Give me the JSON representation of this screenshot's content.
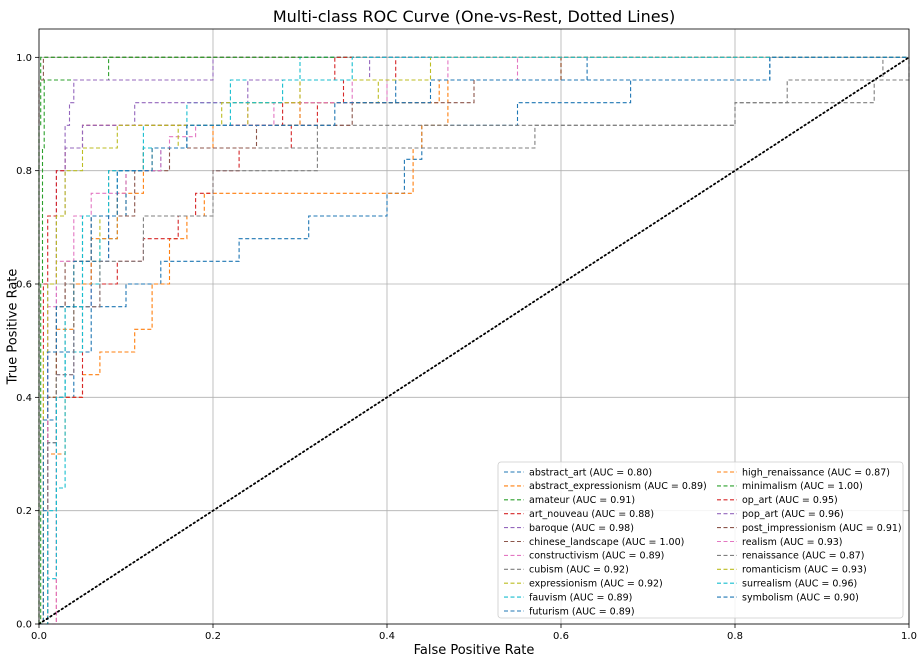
{
  "chart_data": {
    "type": "line",
    "title": "Multi-class ROC Curve (One-vs-Rest, Dotted Lines)",
    "xlabel": "False Positive Rate",
    "ylabel": "True Positive Rate",
    "xlim": [
      0.0,
      1.0
    ],
    "ylim": [
      0.0,
      1.05
    ],
    "x_ticks": [
      "0.0",
      "0.2",
      "0.4",
      "0.6",
      "0.8",
      "1.0"
    ],
    "y_ticks": [
      "0.0",
      "0.2",
      "0.4",
      "0.6",
      "0.8",
      "1.0"
    ],
    "grid": true,
    "legend_placement": "lower-right",
    "legend_columns": 2,
    "diagonal": {
      "style": "dotted",
      "color": "#000000",
      "x": [
        0,
        1
      ],
      "y": [
        0,
        1
      ]
    },
    "series": [
      {
        "name": "abstract_art (AUC = 0.80)",
        "color": "#1f77b4",
        "x": [
          0,
          0.005,
          0.01,
          0.02,
          0.04,
          0.06,
          0.1,
          0.14,
          0.19,
          0.23,
          0.31,
          0.4,
          0.42,
          0.44,
          0.5,
          0.55,
          0.6,
          0.68,
          0.73,
          0.8,
          0.84,
          0.91,
          1.0
        ],
        "y": [
          0,
          0.2,
          0.32,
          0.4,
          0.48,
          0.56,
          0.6,
          0.64,
          0.64,
          0.68,
          0.72,
          0.76,
          0.82,
          0.88,
          0.88,
          0.92,
          0.92,
          0.96,
          0.96,
          0.96,
          1.0,
          1.0,
          1.0
        ]
      },
      {
        "name": "abstract_expressionism (AUC = 0.89)",
        "color": "#ff7f0e",
        "x": [
          0,
          0.01,
          0.03,
          0.05,
          0.07,
          0.11,
          0.13,
          0.15,
          0.17,
          0.19,
          0.42,
          0.43,
          0.44,
          0.47,
          0.52,
          0.59,
          0.6,
          1.0
        ],
        "y": [
          0,
          0.3,
          0.4,
          0.44,
          0.48,
          0.52,
          0.6,
          0.68,
          0.72,
          0.76,
          0.76,
          0.84,
          0.88,
          0.96,
          0.96,
          0.96,
          1.0,
          1.0
        ]
      },
      {
        "name": "amateur (AUC = 0.91)",
        "color": "#2ca02c",
        "x": [
          0,
          0.002,
          0.004,
          0.006,
          0.07,
          0.08,
          0.58,
          0.6,
          1.0
        ],
        "y": [
          0,
          0.6,
          0.84,
          0.96,
          0.96,
          1.0,
          1.0,
          1.0,
          1.0
        ]
      },
      {
        "name": "art_nouveau (AUC = 0.88)",
        "color": "#d62728",
        "x": [
          0,
          0.02,
          0.05,
          0.07,
          0.09,
          0.12,
          0.16,
          0.18,
          0.2,
          0.23,
          0.29,
          0.32,
          0.35,
          0.37,
          0.41,
          0.42,
          0.6,
          1.0
        ],
        "y": [
          0,
          0.4,
          0.56,
          0.6,
          0.64,
          0.68,
          0.72,
          0.76,
          0.8,
          0.84,
          0.88,
          0.92,
          0.96,
          0.96,
          1.0,
          1.0,
          1.0,
          1.0
        ]
      },
      {
        "name": "baroque (AUC = 0.98)",
        "color": "#9467bd",
        "x": [
          0,
          0.01,
          0.02,
          0.03,
          0.035,
          0.04,
          0.19,
          0.2,
          1.0
        ],
        "y": [
          0,
          0.6,
          0.8,
          0.88,
          0.92,
          0.96,
          0.96,
          1.0,
          1.0
        ]
      },
      {
        "name": "chinese_landscape (AUC = 1.00)",
        "color": "#8c564b",
        "x": [
          0,
          0.0,
          0.005,
          1.0
        ],
        "y": [
          0,
          0.96,
          1.0,
          1.0
        ]
      },
      {
        "name": "constructivism (AUC = 0.89)",
        "color": "#e377c2",
        "x": [
          0,
          0.02,
          0.04,
          0.06,
          0.08,
          0.1,
          0.12,
          0.15,
          0.18,
          0.24,
          0.3,
          0.4,
          0.45,
          0.55,
          1.0
        ],
        "y": [
          0,
          0.44,
          0.56,
          0.64,
          0.72,
          0.8,
          0.84,
          0.86,
          0.88,
          0.92,
          0.92,
          0.96,
          0.96,
          1.0,
          1.0
        ]
      },
      {
        "name": "cubism (AUC = 0.92)",
        "color": "#7f7f7f",
        "x": [
          0,
          0.01,
          0.03,
          0.05,
          0.08,
          0.12,
          0.16,
          0.22,
          0.32,
          0.36,
          0.44,
          0.8,
          0.8,
          0.94,
          0.96,
          1.0
        ],
        "y": [
          0,
          0.4,
          0.6,
          0.72,
          0.8,
          0.84,
          0.84,
          0.84,
          0.88,
          0.88,
          0.88,
          0.88,
          0.92,
          0.92,
          0.96,
          1.0
        ]
      },
      {
        "name": "expressionism (AUC = 0.92)",
        "color": "#bcbd22",
        "x": [
          0,
          0.01,
          0.02,
          0.04,
          0.07,
          0.1,
          0.13,
          0.16,
          0.2,
          0.24,
          0.28,
          0.34,
          0.39,
          0.44,
          0.59,
          0.6,
          1.0
        ],
        "y": [
          0,
          0.4,
          0.56,
          0.64,
          0.72,
          0.8,
          0.84,
          0.88,
          0.88,
          0.92,
          0.92,
          0.92,
          0.96,
          0.96,
          0.96,
          1.0,
          1.0
        ]
      },
      {
        "name": "fauvism (AUC = 0.89)",
        "color": "#17becf",
        "x": [
          0,
          0.01,
          0.02,
          0.03,
          0.05,
          0.07,
          0.09,
          0.12,
          0.17,
          0.22,
          0.3,
          0.44,
          0.58,
          0.66,
          1.0
        ],
        "y": [
          0,
          0.08,
          0.24,
          0.48,
          0.6,
          0.68,
          0.8,
          0.88,
          0.92,
          0.96,
          1.0,
          1.0,
          1.0,
          1.0,
          1.0
        ]
      },
      {
        "name": "futurism (AUC = 0.89)",
        "color": "#1f77b4",
        "x": [
          0,
          0.01,
          0.02,
          0.04,
          0.06,
          0.08,
          0.1,
          0.14,
          0.17,
          0.26,
          0.3,
          0.4,
          0.41,
          0.46,
          0.55,
          0.63,
          0.69,
          1.0
        ],
        "y": [
          0,
          0.36,
          0.48,
          0.56,
          0.64,
          0.72,
          0.8,
          0.84,
          0.88,
          0.88,
          0.92,
          0.92,
          0.96,
          0.96,
          0.96,
          1.0,
          1.0,
          1.0
        ]
      },
      {
        "name": "high_renaissance (AUC = 0.87)",
        "color": "#ff7f0e",
        "x": [
          0,
          0.01,
          0.02,
          0.04,
          0.06,
          0.09,
          0.12,
          0.2,
          0.3,
          0.4,
          0.46,
          0.6,
          0.75,
          1.0
        ],
        "y": [
          0,
          0.4,
          0.52,
          0.6,
          0.68,
          0.76,
          0.84,
          0.88,
          0.92,
          0.92,
          0.96,
          1.0,
          1.0,
          1.0
        ]
      },
      {
        "name": "minimalism (AUC = 1.00)",
        "color": "#2ca02c",
        "x": [
          0,
          0.0,
          0.002,
          1.0
        ],
        "y": [
          0,
          0.88,
          1.0,
          1.0
        ]
      },
      {
        "name": "op_art (AUC = 0.95)",
        "color": "#d62728",
        "x": [
          0,
          0.005,
          0.01,
          0.02,
          0.03,
          0.05,
          0.08,
          0.28,
          0.3,
          0.32,
          0.34,
          0.4,
          1.0
        ],
        "y": [
          0,
          0.6,
          0.72,
          0.8,
          0.84,
          0.88,
          0.88,
          0.92,
          0.96,
          0.96,
          1.0,
          1.0,
          1.0
        ]
      },
      {
        "name": "pop_art (AUC = 0.96)",
        "color": "#9467bd",
        "x": [
          0,
          0.01,
          0.02,
          0.03,
          0.05,
          0.08,
          0.11,
          0.14,
          0.24,
          0.31,
          0.38,
          0.55,
          1.0
        ],
        "y": [
          0,
          0.48,
          0.72,
          0.84,
          0.88,
          0.88,
          0.92,
          0.92,
          0.96,
          0.96,
          1.0,
          1.0,
          1.0
        ]
      },
      {
        "name": "post_impressionism (AUC = 0.91)",
        "color": "#8c564b",
        "x": [
          0,
          0.01,
          0.02,
          0.03,
          0.06,
          0.11,
          0.15,
          0.2,
          0.25,
          0.29,
          0.36,
          0.42,
          0.5,
          0.58,
          0.6,
          1.0
        ],
        "y": [
          0,
          0.4,
          0.56,
          0.64,
          0.72,
          0.8,
          0.84,
          0.84,
          0.88,
          0.88,
          0.92,
          0.92,
          0.96,
          0.96,
          1.0,
          1.0
        ]
      },
      {
        "name": "realism (AUC = 0.93)",
        "color": "#e377c2",
        "x": [
          0,
          0.01,
          0.02,
          0.04,
          0.06,
          0.1,
          0.14,
          0.17,
          0.2,
          0.27,
          0.36,
          0.4,
          0.47,
          1.0
        ],
        "y": [
          0,
          0.56,
          0.64,
          0.72,
          0.76,
          0.8,
          0.84,
          0.88,
          0.88,
          0.92,
          0.96,
          0.96,
          1.0,
          1.0
        ]
      },
      {
        "name": "renaissance (AUC = 0.87)",
        "color": "#7f7f7f",
        "x": [
          0,
          0.01,
          0.02,
          0.04,
          0.07,
          0.12,
          0.2,
          0.32,
          0.4,
          0.57,
          0.63,
          0.8,
          0.86,
          0.93,
          0.97,
          1.0
        ],
        "y": [
          0,
          0.32,
          0.44,
          0.56,
          0.64,
          0.72,
          0.8,
          0.84,
          0.84,
          0.88,
          0.88,
          0.92,
          0.96,
          0.96,
          1.0,
          1.0
        ]
      },
      {
        "name": "romanticism (AUC = 0.93)",
        "color": "#bcbd22",
        "x": [
          0,
          0.005,
          0.01,
          0.02,
          0.03,
          0.05,
          0.09,
          0.15,
          0.21,
          0.3,
          0.39,
          0.45,
          0.55,
          1.0
        ],
        "y": [
          0,
          0.48,
          0.6,
          0.72,
          0.8,
          0.84,
          0.88,
          0.88,
          0.92,
          0.96,
          0.96,
          1.0,
          1.0,
          1.0
        ]
      },
      {
        "name": "surrealism (AUC = 0.96)",
        "color": "#17becf",
        "x": [
          0,
          0.01,
          0.02,
          0.03,
          0.05,
          0.08,
          0.12,
          0.17,
          0.22,
          0.28,
          0.36,
          0.51,
          1.0
        ],
        "y": [
          0,
          0.2,
          0.4,
          0.56,
          0.72,
          0.8,
          0.84,
          0.88,
          0.92,
          0.96,
          1.0,
          1.0,
          1.0
        ]
      },
      {
        "name": "symbolism (AUC = 0.90)",
        "color": "#1f77b4",
        "x": [
          0,
          0.005,
          0.01,
          0.02,
          0.04,
          0.06,
          0.09,
          0.13,
          0.17,
          0.25,
          0.34,
          0.45,
          0.56,
          0.68,
          0.84,
          0.91,
          1.0
        ],
        "y": [
          0,
          0.36,
          0.48,
          0.56,
          0.64,
          0.72,
          0.8,
          0.84,
          0.88,
          0.88,
          0.92,
          0.96,
          0.96,
          0.96,
          1.0,
          1.0,
          1.0
        ]
      }
    ]
  }
}
